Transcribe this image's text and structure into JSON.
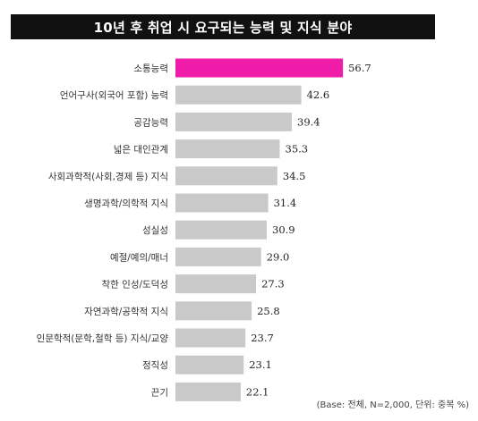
{
  "chart_data": {
    "type": "bar",
    "orientation": "horizontal",
    "title": "10년 후 취업 시 요구되는 능력 및 지식 분야",
    "categories": [
      "소통능력",
      "언어구사(외국어 포함) 능력",
      "공감능력",
      "넓은 대인관계",
      "사회과학적(사회,경제 등) 지식",
      "생명과학/의학적 지식",
      "성실성",
      "예절/예의/매너",
      "착한 인성/도덕성",
      "자연과학/공학적 지식",
      "인문학적(문학,철학 등) 지식/교양",
      "정직성",
      "끈기"
    ],
    "values": [
      56.7,
      42.6,
      39.4,
      35.3,
      34.5,
      31.4,
      30.9,
      29.0,
      27.3,
      25.8,
      23.7,
      23.1,
      22.1
    ],
    "value_labels": [
      "56.7",
      "42.6",
      "39.4",
      "35.3",
      "34.5",
      "31.4",
      "30.9",
      "29.0",
      "27.3",
      "25.8",
      "23.7",
      "23.1",
      "22.1"
    ],
    "highlight_index": 0,
    "note": "(Base: 전체, N=2,000, 단위: 중복 %)",
    "colors": {
      "highlight": "#ee1ca8",
      "bar": "#c8c9c8",
      "title_bg": "#111111",
      "title_text": "#ffffff"
    }
  }
}
